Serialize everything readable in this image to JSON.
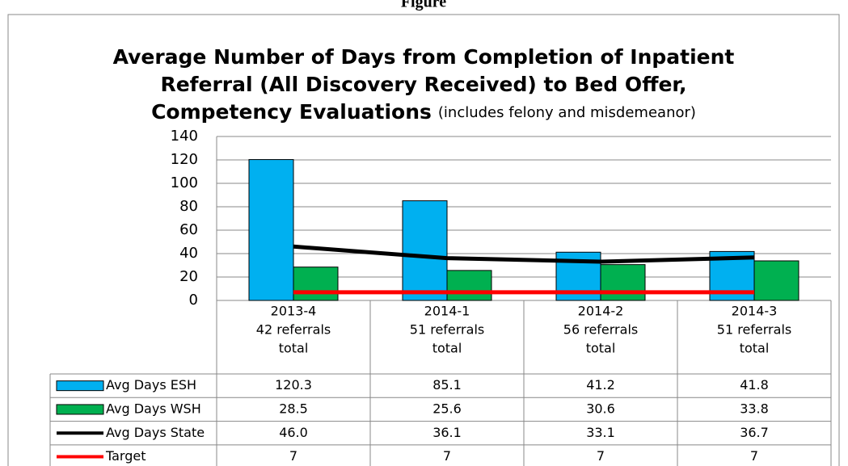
{
  "chart_data": {
    "type": "bar",
    "header": "Figure",
    "title": [
      "Average Number of Days from Completion of Inpatient",
      "Referral (All Discovery Received) to Bed Offer,",
      "Competency Evaluations"
    ],
    "subtitle": "(includes felony and misdemeanor)",
    "categories": [
      [
        "2013-4",
        "42 referrals",
        "total"
      ],
      [
        "2014-1",
        "51 referrals",
        "total"
      ],
      [
        "2014-2",
        "56 referrals",
        "total"
      ],
      [
        "2014-3",
        "51 referrals",
        "total"
      ]
    ],
    "series": [
      {
        "name": "Avg Days ESH",
        "kind": "bar",
        "color": "#00b0f0",
        "values": [
          120.3,
          85.1,
          41.2,
          41.8
        ],
        "value_labels": [
          "120.3",
          "85.1",
          "41.2",
          "41.8"
        ]
      },
      {
        "name": "Avg Days WSH",
        "kind": "bar",
        "color": "#00b050",
        "values": [
          28.5,
          25.6,
          30.6,
          33.8
        ],
        "value_labels": [
          "28.5",
          "25.6",
          "30.6",
          "33.8"
        ]
      },
      {
        "name": "Avg Days State",
        "kind": "line",
        "color": "#000000",
        "values": [
          46.0,
          36.1,
          33.1,
          36.7
        ],
        "value_labels": [
          "46.0",
          "36.1",
          "33.1",
          "36.7"
        ]
      },
      {
        "name": "Target",
        "kind": "line",
        "color": "#ff0000",
        "values": [
          7,
          7,
          7,
          7
        ],
        "value_labels": [
          "7",
          "7",
          "7",
          "7"
        ]
      }
    ],
    "ylim": [
      0,
      140
    ],
    "yticks": [
      0,
      20,
      40,
      60,
      80,
      100,
      120,
      140
    ],
    "grid": true
  }
}
